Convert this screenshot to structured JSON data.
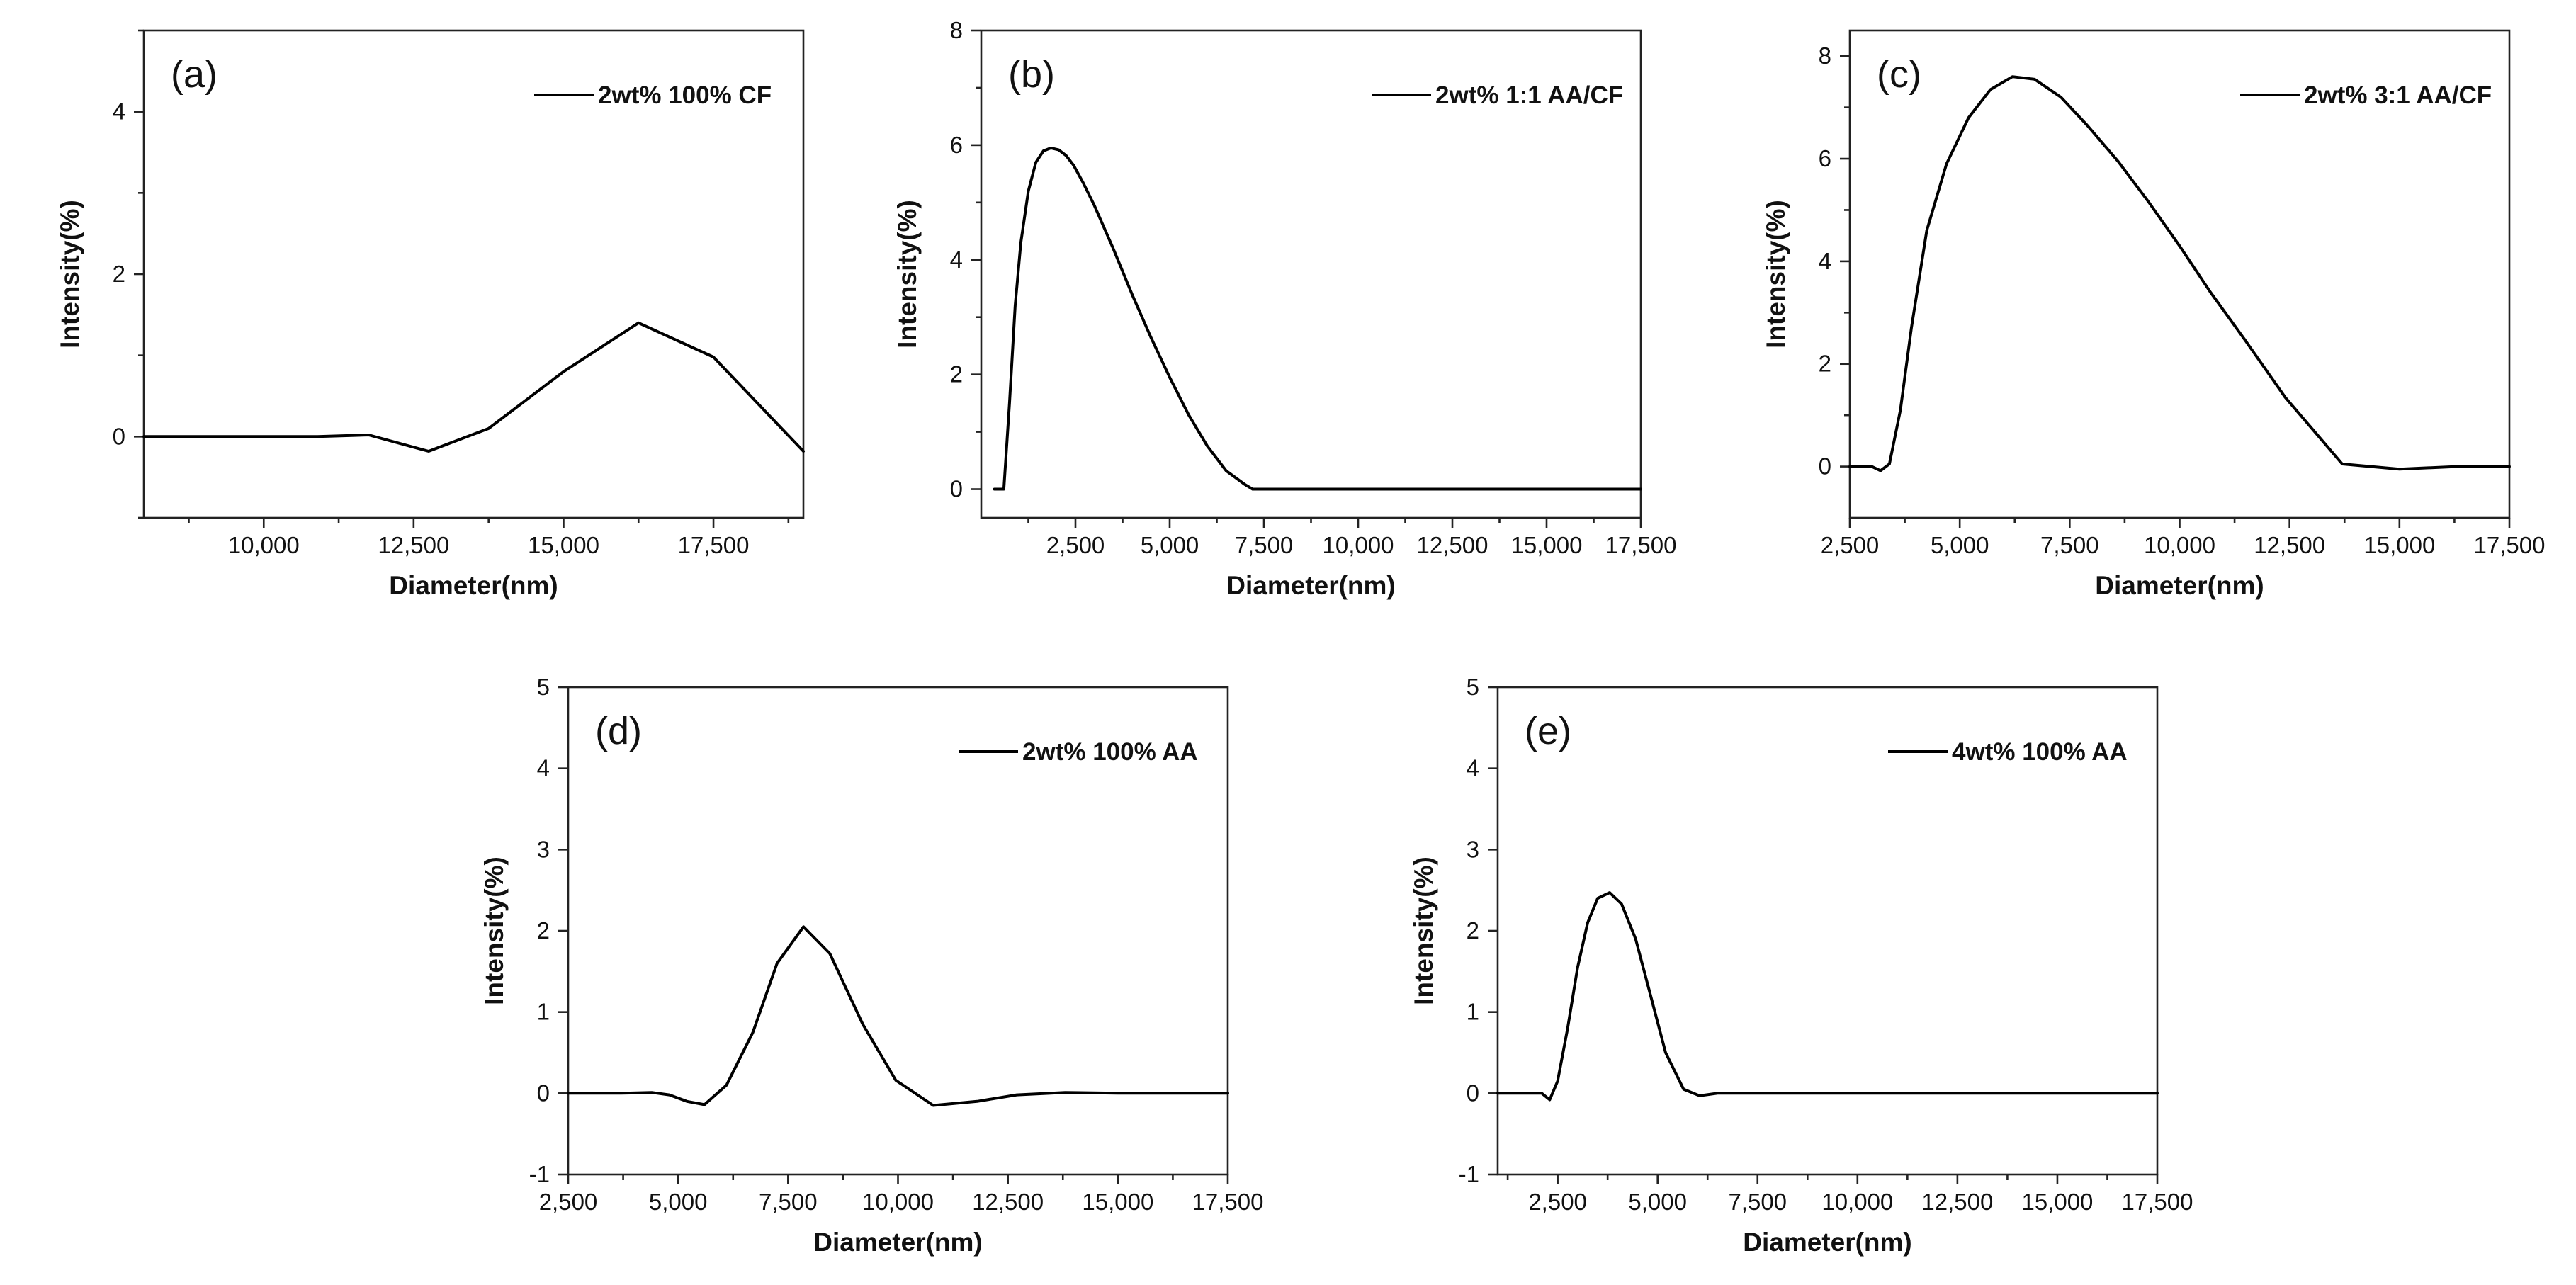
{
  "figure": {
    "background": "#ffffff",
    "line_color": "#000000"
  },
  "chart_data": [
    {
      "id": "a",
      "type": "line",
      "panel_label": "(a)",
      "title": "",
      "xlabel": "Diameter(nm)",
      "ylabel": "Intensity(%)",
      "xlim": [
        8000,
        19000
      ],
      "ylim": [
        -1,
        5
      ],
      "xticks": [
        10000,
        12500,
        15000,
        17500
      ],
      "xtick_labels": [
        "10,000",
        "12,500",
        "15,000",
        "17,500"
      ],
      "xticks_minor": [
        8750,
        11250,
        13750,
        16250,
        18750
      ],
      "yticks": [
        0,
        2,
        4
      ],
      "ytick_labels": [
        "0",
        "2",
        "4"
      ],
      "yticks_minor": [
        -1,
        1,
        3,
        5
      ],
      "legend": "top-right",
      "series": [
        {
          "name": "2wt% 100% CF",
          "x": [
            8000,
            9000,
            10900,
            11750,
            12750,
            13750,
            15000,
            16250,
            17500,
            19000
          ],
          "y": [
            0,
            0,
            0,
            0.02,
            -0.18,
            0.1,
            0.8,
            1.4,
            0.98,
            -0.18
          ]
        }
      ]
    },
    {
      "id": "b",
      "type": "line",
      "panel_label": "(b)",
      "title": "",
      "xlabel": "Diameter(nm)",
      "ylabel": "Intensity(%)",
      "xlim": [
        0,
        17500
      ],
      "ylim": [
        -0.5,
        8
      ],
      "xticks": [
        2500,
        5000,
        7500,
        10000,
        12500,
        15000,
        17500
      ],
      "xtick_labels": [
        "2,500",
        "5,000",
        "7,500",
        "10,000",
        "12,500",
        "15,000",
        "17,500"
      ],
      "xticks_minor": [
        1250,
        3750,
        6250,
        8750,
        11250,
        13750,
        16250
      ],
      "yticks": [
        0,
        2,
        4,
        6,
        8
      ],
      "ytick_labels": [
        "0",
        "2",
        "4",
        "6",
        "8"
      ],
      "yticks_minor": [
        1,
        3,
        5,
        7
      ],
      "legend": "top-right",
      "series": [
        {
          "name": "2wt% 1:1 AA/CF",
          "x": [
            350,
            600,
            750,
            900,
            1050,
            1250,
            1450,
            1650,
            1850,
            2050,
            2250,
            2450,
            2700,
            3000,
            3500,
            4000,
            4500,
            5000,
            5500,
            6000,
            6500,
            7000,
            7200,
            7500,
            10000,
            12500,
            15000,
            17500
          ],
          "y": [
            0,
            0,
            1.5,
            3.2,
            4.3,
            5.2,
            5.7,
            5.9,
            5.95,
            5.92,
            5.82,
            5.65,
            5.35,
            4.95,
            4.2,
            3.4,
            2.65,
            1.95,
            1.3,
            0.75,
            0.32,
            0.08,
            0,
            0,
            0,
            0,
            0,
            0
          ]
        }
      ]
    },
    {
      "id": "c",
      "type": "line",
      "panel_label": "(c)",
      "title": "",
      "xlabel": "Diameter(nm)",
      "ylabel": "Intensity(%)",
      "xlim": [
        2500,
        17500
      ],
      "ylim": [
        -1,
        8.5
      ],
      "xticks": [
        2500,
        5000,
        7500,
        10000,
        12500,
        15000,
        17500
      ],
      "xtick_labels": [
        "2,500",
        "5,000",
        "7,500",
        "10,000",
        "12,500",
        "15,000",
        "17,500"
      ],
      "xticks_minor": [
        3750,
        6250,
        8750,
        11250,
        13750,
        16250
      ],
      "yticks": [
        0,
        2,
        4,
        6,
        8
      ],
      "ytick_labels": [
        "0",
        "2",
        "4",
        "6",
        "8"
      ],
      "yticks_minor": [
        1,
        3,
        5,
        7
      ],
      "legend": "top-right",
      "series": [
        {
          "name": "2wt% 3:1 AA/CF",
          "x": [
            2500,
            3000,
            3200,
            3400,
            3650,
            3900,
            4250,
            4700,
            5200,
            5700,
            6200,
            6700,
            7300,
            7900,
            8600,
            9300,
            10000,
            10700,
            11500,
            12400,
            13700,
            15000,
            16300,
            17500
          ],
          "y": [
            0,
            0,
            -0.08,
            0.05,
            1.1,
            2.7,
            4.6,
            5.9,
            6.8,
            7.35,
            7.6,
            7.55,
            7.2,
            6.65,
            5.95,
            5.15,
            4.3,
            3.4,
            2.45,
            1.35,
            0.05,
            -0.05,
            0,
            0
          ]
        }
      ]
    },
    {
      "id": "d",
      "type": "line",
      "panel_label": "(d)",
      "title": "",
      "xlabel": "Diameter(nm)",
      "ylabel": "Intensity(%)",
      "xlim": [
        2500,
        17500
      ],
      "ylim": [
        -1,
        5
      ],
      "xticks": [
        2500,
        5000,
        7500,
        10000,
        12500,
        15000,
        17500
      ],
      "xtick_labels": [
        "2,500",
        "5,000",
        "7,500",
        "10,000",
        "12,500",
        "15,000",
        "17,500"
      ],
      "xticks_minor": [
        3750,
        6250,
        8750,
        11250,
        13750,
        16250
      ],
      "yticks": [
        -1,
        0,
        1,
        2,
        3,
        4,
        5
      ],
      "ytick_labels": [
        "-1",
        "0",
        "1",
        "2",
        "3",
        "4",
        "5"
      ],
      "yticks_minor": [],
      "legend": "top-right",
      "series": [
        {
          "name": "2wt% 100% AA",
          "x": [
            2500,
            3700,
            4400,
            4800,
            5200,
            5600,
            6100,
            6700,
            7250,
            7850,
            8450,
            9200,
            9950,
            10800,
            11800,
            12700,
            13800,
            15000,
            16200,
            17500
          ],
          "y": [
            0,
            0,
            0.01,
            -0.02,
            -0.1,
            -0.14,
            0.1,
            0.75,
            1.6,
            2.05,
            1.72,
            0.85,
            0.16,
            -0.15,
            -0.1,
            -0.02,
            0.01,
            0,
            0,
            0
          ]
        }
      ]
    },
    {
      "id": "e",
      "type": "line",
      "panel_label": "(e)",
      "title": "",
      "xlabel": "Diameter(nm)",
      "ylabel": "Intensity(%)",
      "xlim": [
        1000,
        17500
      ],
      "ylim": [
        -1,
        5
      ],
      "xticks": [
        2500,
        5000,
        7500,
        10000,
        12500,
        15000,
        17500
      ],
      "xtick_labels": [
        "2,500",
        "5,000",
        "7,500",
        "10,000",
        "12,500",
        "15,000",
        "17,500"
      ],
      "xticks_minor": [
        1250,
        3750,
        6250,
        8750,
        11250,
        13750,
        16250
      ],
      "yticks": [
        -1,
        0,
        1,
        2,
        3,
        4,
        5
      ],
      "ytick_labels": [
        "-1",
        "0",
        "1",
        "2",
        "3",
        "4",
        "5"
      ],
      "yticks_minor": [],
      "legend": "top-right",
      "series": [
        {
          "name": "4wt% 100% AA",
          "x": [
            1000,
            2100,
            2300,
            2500,
            2750,
            3000,
            3250,
            3500,
            3800,
            4100,
            4450,
            4800,
            5200,
            5650,
            6050,
            6500,
            7000,
            10000,
            12500,
            15000,
            17500
          ],
          "y": [
            0,
            0,
            -0.08,
            0.15,
            0.8,
            1.55,
            2.1,
            2.4,
            2.47,
            2.33,
            1.9,
            1.25,
            0.5,
            0.05,
            -0.03,
            0,
            0,
            0,
            0,
            0,
            0
          ]
        }
      ]
    }
  ]
}
